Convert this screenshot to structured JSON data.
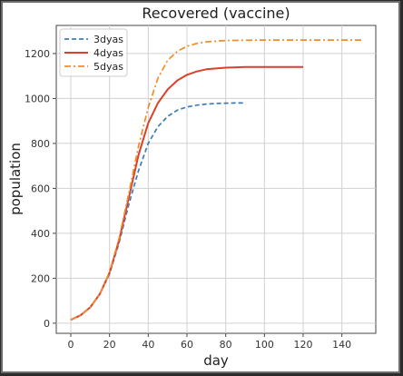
{
  "chart_data": {
    "type": "line",
    "title": "Recovered (vaccine)",
    "xlabel": "day",
    "ylabel": "population",
    "xlim": [
      -7.5,
      157.5
    ],
    "ylim": [
      -45,
      1325
    ],
    "xticks": [
      0,
      20,
      40,
      60,
      80,
      100,
      120,
      140
    ],
    "yticks": [
      0,
      200,
      400,
      600,
      800,
      1000,
      1200
    ],
    "grid": true,
    "legend_position": "top-left",
    "series": [
      {
        "name": "3dyas",
        "color": "#3a7dbd",
        "dash": "dashed",
        "points": [
          [
            0,
            15
          ],
          [
            5,
            35
          ],
          [
            10,
            70
          ],
          [
            15,
            130
          ],
          [
            20,
            220
          ],
          [
            25,
            360
          ],
          [
            30,
            530
          ],
          [
            35,
            680
          ],
          [
            40,
            800
          ],
          [
            45,
            875
          ],
          [
            50,
            920
          ],
          [
            55,
            948
          ],
          [
            60,
            962
          ],
          [
            65,
            970
          ],
          [
            70,
            975
          ],
          [
            75,
            978
          ],
          [
            80,
            979
          ],
          [
            85,
            980
          ],
          [
            90,
            980
          ]
        ]
      },
      {
        "name": "4dyas",
        "color": "#d9412b",
        "dash": "solid",
        "points": [
          [
            0,
            15
          ],
          [
            5,
            35
          ],
          [
            10,
            70
          ],
          [
            15,
            130
          ],
          [
            20,
            225
          ],
          [
            25,
            370
          ],
          [
            30,
            560
          ],
          [
            35,
            750
          ],
          [
            40,
            890
          ],
          [
            45,
            980
          ],
          [
            50,
            1040
          ],
          [
            55,
            1080
          ],
          [
            60,
            1105
          ],
          [
            65,
            1120
          ],
          [
            70,
            1130
          ],
          [
            80,
            1137
          ],
          [
            90,
            1140
          ],
          [
            100,
            1140
          ],
          [
            110,
            1140
          ],
          [
            120,
            1140
          ]
        ]
      },
      {
        "name": "5dyas",
        "color": "#f08c2a",
        "dash": "dashdot",
        "points": [
          [
            0,
            15
          ],
          [
            5,
            35
          ],
          [
            10,
            70
          ],
          [
            15,
            130
          ],
          [
            20,
            228
          ],
          [
            25,
            380
          ],
          [
            30,
            580
          ],
          [
            35,
            790
          ],
          [
            40,
            960
          ],
          [
            45,
            1090
          ],
          [
            50,
            1170
          ],
          [
            55,
            1210
          ],
          [
            60,
            1232
          ],
          [
            65,
            1245
          ],
          [
            70,
            1252
          ],
          [
            80,
            1258
          ],
          [
            100,
            1260
          ],
          [
            120,
            1260
          ],
          [
            140,
            1260
          ],
          [
            150,
            1260
          ]
        ]
      }
    ]
  }
}
